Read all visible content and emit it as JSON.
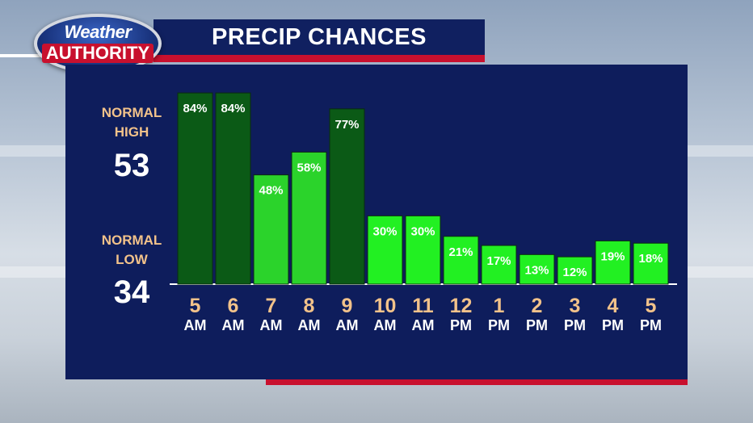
{
  "header": {
    "title": "PRECIP CHANCES"
  },
  "logo": {
    "top": "Weather",
    "bottom": "AUTHORITY"
  },
  "normals": {
    "high_label_1": "NORMAL",
    "high_label_2": "HIGH",
    "high_value": "53",
    "low_label_1": "NORMAL",
    "low_label_2": "LOW",
    "low_value": "34"
  },
  "colors": {
    "dark_bar": "#0b5a16",
    "light_bar": "#2bd32b",
    "bright_bar": "#22f022",
    "panel": "#0e1d5c",
    "accent_red": "#c8102e"
  },
  "chart_data": {
    "type": "bar",
    "categories": [
      "5 AM",
      "6 AM",
      "7 AM",
      "8 AM",
      "9 AM",
      "10 AM",
      "11 AM",
      "12 PM",
      "1 PM",
      "2 PM",
      "3 PM",
      "4 PM",
      "5 PM"
    ],
    "hours": [
      "5",
      "6",
      "7",
      "8",
      "9",
      "10",
      "11",
      "12",
      "1",
      "2",
      "3",
      "4",
      "5"
    ],
    "periods": [
      "AM",
      "AM",
      "AM",
      "AM",
      "AM",
      "AM",
      "AM",
      "PM",
      "PM",
      "PM",
      "PM",
      "PM",
      "PM"
    ],
    "values": [
      84,
      84,
      48,
      58,
      77,
      30,
      30,
      21,
      17,
      13,
      12,
      19,
      18
    ],
    "labels": [
      "84%",
      "84%",
      "48%",
      "58%",
      "77%",
      "30%",
      "30%",
      "21%",
      "17%",
      "13%",
      "12%",
      "19%",
      "18%"
    ],
    "ylim": [
      0,
      100
    ],
    "title": "PRECIP CHANCES"
  }
}
